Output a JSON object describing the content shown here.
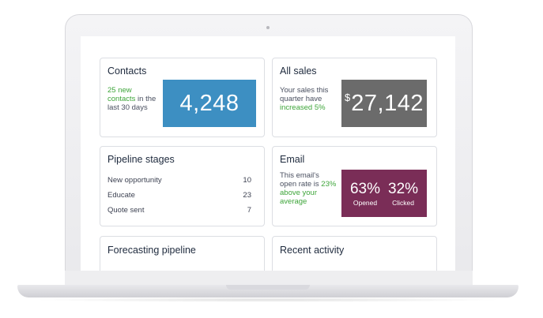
{
  "contacts": {
    "title": "Contacts",
    "note_highlight": "25 new contacts",
    "note_rest": " in the last 30 days",
    "value": "4,248",
    "tile_color": "#3d8fc2"
  },
  "all_sales": {
    "title": "All sales",
    "note_line1": "Your sales this quarter have",
    "note_highlight": "increased 5%",
    "currency": "$",
    "value": "27,142",
    "tile_color": "#6b6b6b"
  },
  "pipeline": {
    "title": "Pipeline stages",
    "rows": [
      {
        "label": "New opportunity",
        "value": "10"
      },
      {
        "label": "Educate",
        "value": "23"
      },
      {
        "label": "Quote sent",
        "value": "7"
      }
    ]
  },
  "email": {
    "title": "Email",
    "note_line1": "This email's open rate is",
    "note_highlight": "23% above your average",
    "opened_value": "63%",
    "opened_label": "Opened",
    "clicked_value": "32%",
    "clicked_label": "Clicked",
    "tile_color": "#7a2d57"
  },
  "forecasting": {
    "title": "Forecasting pipeline"
  },
  "recent": {
    "title": "Recent activity"
  }
}
